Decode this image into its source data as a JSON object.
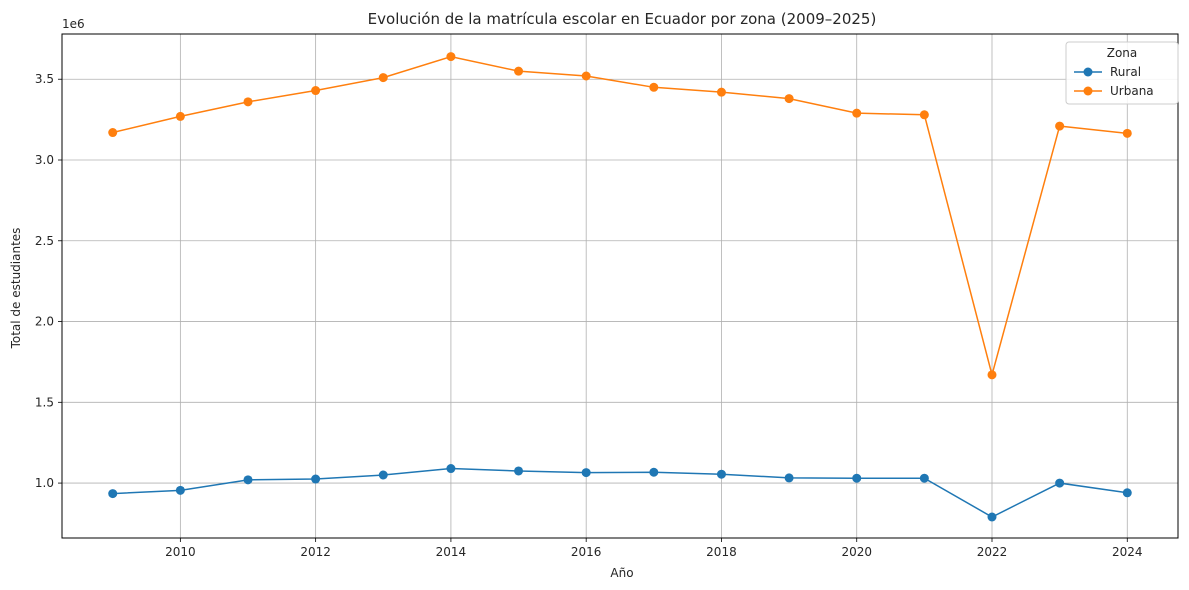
{
  "chart_data": {
    "type": "line",
    "title": "Evolución de la matrícula escolar en Ecuador por zona (2009–2025)",
    "xlabel": "Año",
    "ylabel": "Total de estudiantes",
    "y_offset_label": "1e6",
    "xlim": [
      2008.25,
      2024.75
    ],
    "ylim": [
      0.66,
      3.78
    ],
    "x_ticks": [
      2010,
      2012,
      2014,
      2016,
      2018,
      2020,
      2022,
      2024
    ],
    "y_ticks": [
      1.0,
      1.5,
      2.0,
      2.5,
      3.0,
      3.5
    ],
    "y_tick_labels": [
      "1.0",
      "1.5",
      "2.0",
      "2.5",
      "3.0",
      "3.5"
    ],
    "grid": true,
    "legend": {
      "title": "Zona",
      "position": "top-right"
    },
    "x": [
      2009,
      2010,
      2011,
      2012,
      2013,
      2014,
      2015,
      2016,
      2017,
      2018,
      2019,
      2020,
      2021,
      2022,
      2023,
      2024
    ],
    "series": [
      {
        "name": "Rural",
        "color": "#1f77b4",
        "values": [
          0.935,
          0.955,
          1.02,
          1.025,
          1.05,
          1.09,
          1.075,
          1.065,
          1.067,
          1.055,
          1.032,
          1.03,
          1.03,
          0.79,
          1.0,
          0.94
        ]
      },
      {
        "name": "Urbana",
        "color": "#ff7f0e",
        "values": [
          3.17,
          3.27,
          3.36,
          3.43,
          3.51,
          3.64,
          3.55,
          3.52,
          3.45,
          3.42,
          3.38,
          3.29,
          3.28,
          1.67,
          3.21,
          3.165
        ]
      }
    ]
  }
}
